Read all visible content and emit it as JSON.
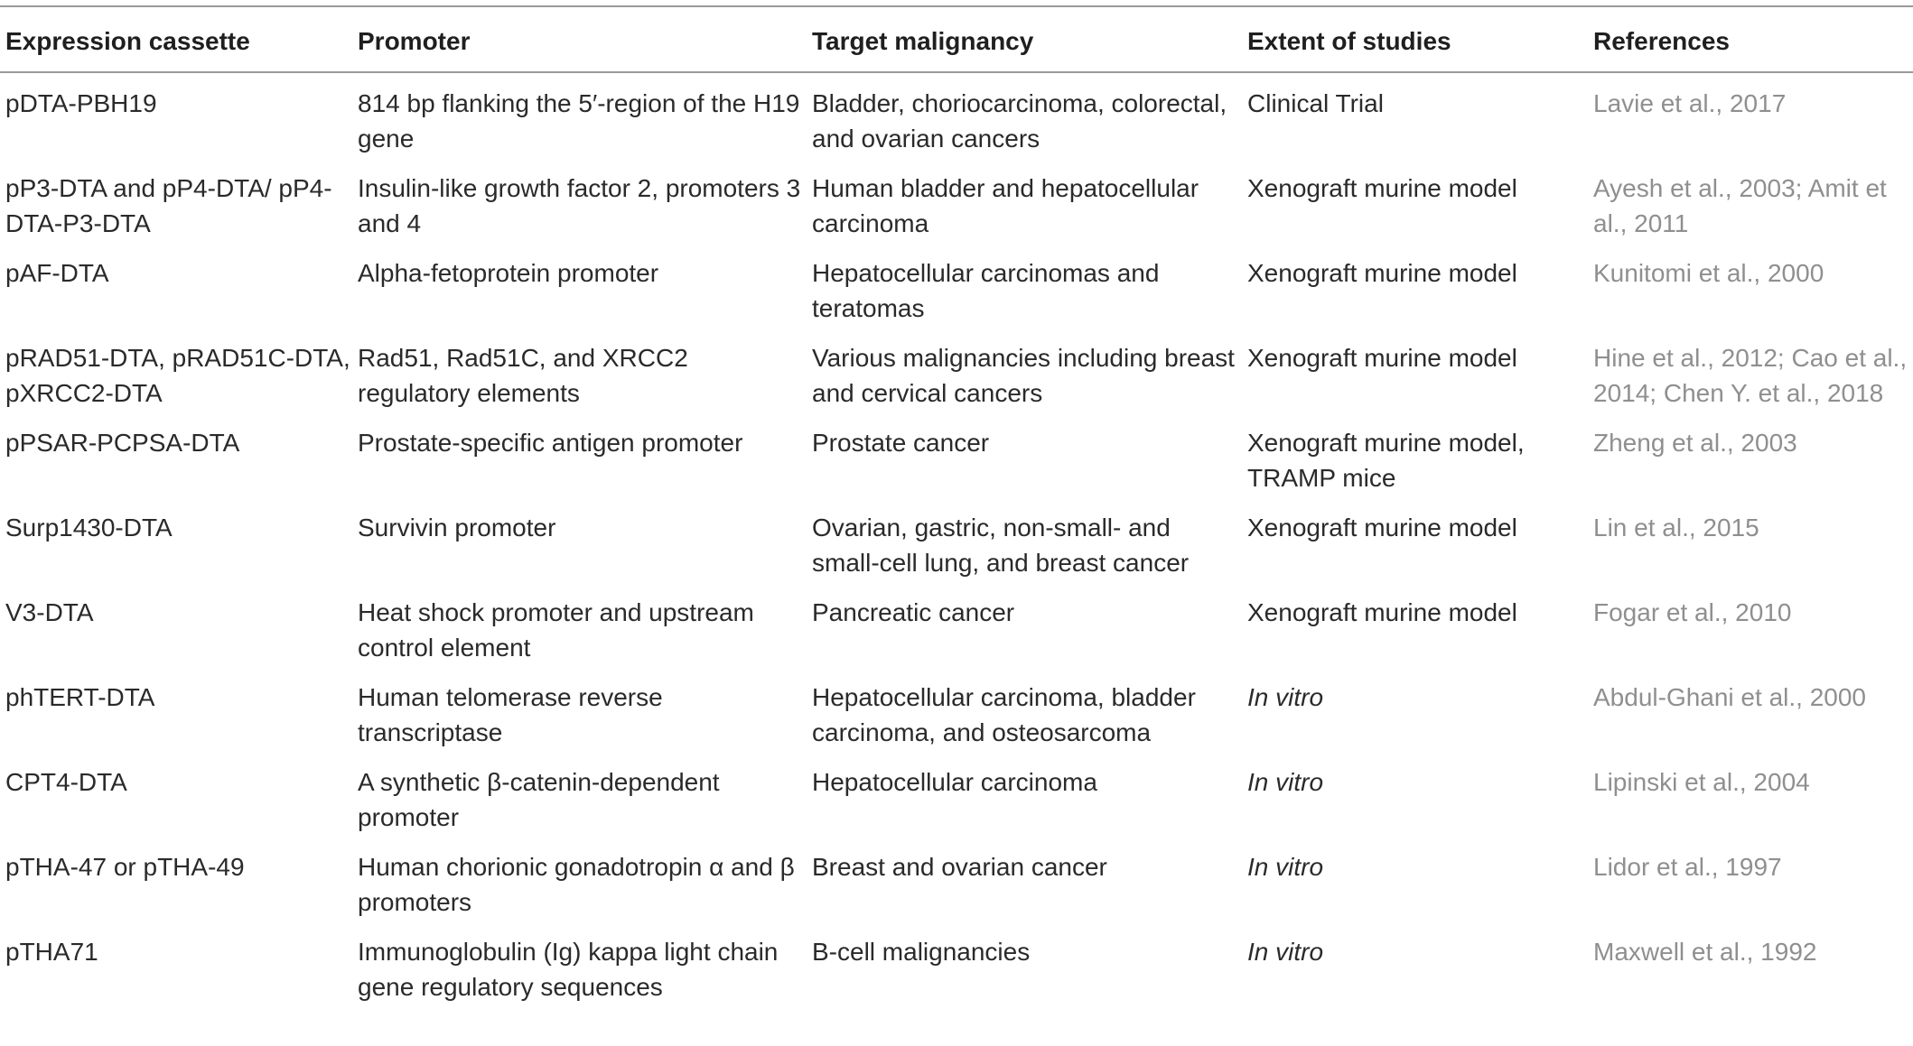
{
  "headers": [
    "Expression cassette",
    "Promoter",
    "Target malignancy",
    "Extent of studies",
    "References"
  ],
  "rows": [
    {
      "cassette": "pDTA-PBH19",
      "promoter": "814 bp flanking the 5′-region of the H19 gene",
      "target": "Bladder, choriocarcinoma, colorectal, and ovarian cancers",
      "extent": "Clinical Trial",
      "extent_italic": false,
      "references": "Lavie et al., 2017"
    },
    {
      "cassette": "pP3-DTA and pP4-DTA/ pP4-DTA-P3-DTA",
      "promoter": "Insulin-like growth factor 2, promoters 3 and 4",
      "target": "Human bladder and hepatocellular carcinoma",
      "extent": "Xenograft murine model",
      "extent_italic": false,
      "references": "Ayesh et al., 2003; Amit et al., 2011"
    },
    {
      "cassette": "pAF-DTA",
      "promoter": "Alpha-fetoprotein promoter",
      "target": "Hepatocellular carcinomas and teratomas",
      "extent": "Xenograft murine model",
      "extent_italic": false,
      "references": "Kunitomi et al., 2000"
    },
    {
      "cassette": "pRAD51-DTA, pRAD51C-DTA, pXRCC2-DTA",
      "promoter": "Rad51, Rad51C, and XRCC2 regulatory elements",
      "target": "Various malignancies including breast and cervical cancers",
      "extent": "Xenograft murine model",
      "extent_italic": false,
      "references": "Hine et al., 2012; Cao et al., 2014; Chen Y. et al., 2018"
    },
    {
      "cassette": "pPSAR-PCPSA-DTA",
      "promoter": "Prostate-specific antigen promoter",
      "target": "Prostate cancer",
      "extent": "Xenograft murine model, TRAMP mice",
      "extent_italic": false,
      "references": "Zheng et al., 2003"
    },
    {
      "cassette": "Surp1430-DTA",
      "promoter": "Survivin promoter",
      "target": "Ovarian, gastric, non-small- and small-cell lung, and breast cancer",
      "extent": "Xenograft murine model",
      "extent_italic": false,
      "references": "Lin et al., 2015"
    },
    {
      "cassette": "V3-DTA",
      "promoter": "Heat shock promoter and upstream control element",
      "target": "Pancreatic cancer",
      "extent": "Xenograft murine model",
      "extent_italic": false,
      "references": "Fogar et al., 2010"
    },
    {
      "cassette": "phTERT-DTA",
      "promoter": "Human telomerase reverse transcriptase",
      "target": "Hepatocellular carcinoma, bladder carcinoma, and osteosarcoma",
      "extent": "In vitro",
      "extent_italic": true,
      "references": "Abdul-Ghani et al., 2000"
    },
    {
      "cassette": "CPT4-DTA",
      "promoter": "A synthetic β-catenin-dependent promoter",
      "target": "Hepatocellular carcinoma",
      "extent": "In vitro",
      "extent_italic": true,
      "references": "Lipinski et al., 2004"
    },
    {
      "cassette": "pTHA-47 or pTHA-49",
      "promoter": "Human chorionic gonadotropin α and β promoters",
      "target": "Breast and ovarian cancer",
      "extent": "In vitro",
      "extent_italic": true,
      "references": "Lidor et al., 1997"
    },
    {
      "cassette": "pTHA71",
      "promoter": "Immunoglobulin (Ig) kappa light chain gene regulatory sequences",
      "target": "B-cell malignancies",
      "extent": "In vitro",
      "extent_italic": true,
      "references": "Maxwell et al., 1992"
    }
  ],
  "colors": {
    "text": "#2a2a2a",
    "reference_text": "#8f8f8f",
    "rule": "#9a9a9a"
  }
}
